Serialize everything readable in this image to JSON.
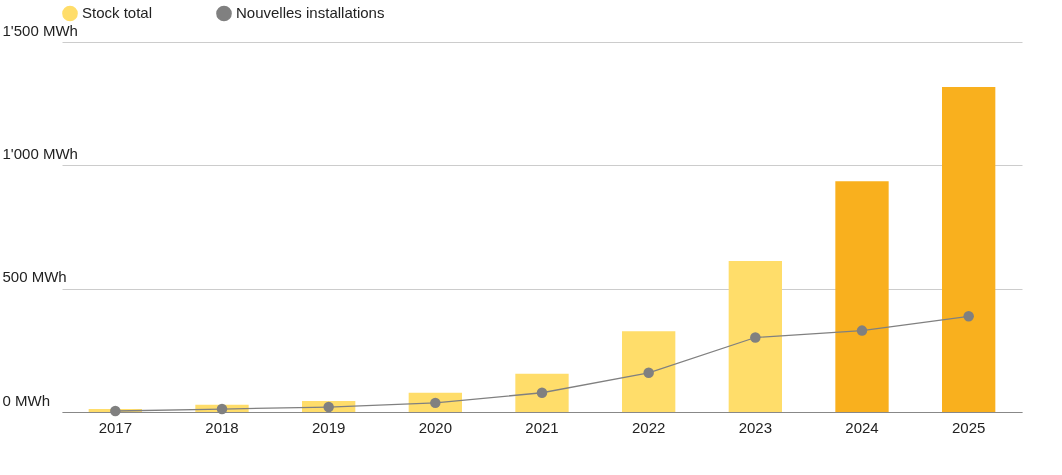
{
  "chart_data": {
    "type": "bar",
    "categories": [
      "2017",
      "2018",
      "2019",
      "2020",
      "2021",
      "2022",
      "2023",
      "2024",
      "2025"
    ],
    "series": [
      {
        "name": "Stock total",
        "color": "#ffdd6a",
        "colors": [
          "#ffdd6a",
          "#ffdd6a",
          "#ffdd6a",
          "#ffdd6a",
          "#ffdd6a",
          "#ffdd6a",
          "#ffdd6a",
          "#f9b01e",
          "#f9b01e"
        ],
        "values": [
          12,
          29,
          45,
          78,
          155,
          327,
          612,
          935,
          1318
        ]
      },
      {
        "name": "Nouvelles installations",
        "type": "line",
        "color": "#808080",
        "marker": "circle",
        "values": [
          4,
          12,
          20,
          37,
          78,
          159,
          302,
          330,
          388
        ]
      }
    ],
    "ylim": [
      0,
      1500
    ],
    "yticks": [
      {
        "value": 0,
        "label": "0 MWh"
      },
      {
        "value": 500,
        "label": "500 MWh"
      },
      {
        "value": 1000,
        "label": "1'000 MWh"
      },
      {
        "value": 1500,
        "label": "1'500 MWh"
      }
    ],
    "grid": "y",
    "legend": "top left"
  }
}
